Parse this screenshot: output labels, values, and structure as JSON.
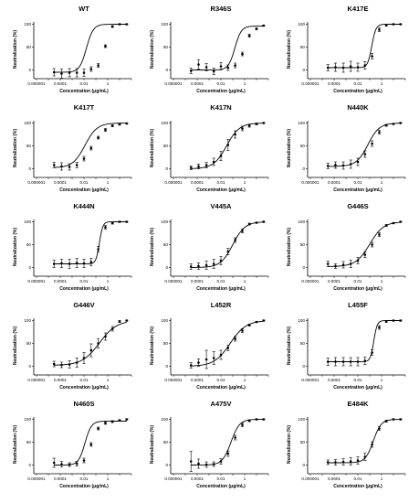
{
  "chart_data": [
    {
      "type": "scatter",
      "title": "WT",
      "xlabel": "Concentration (μg/mL)",
      "ylabel": "Neutralization (%)",
      "xscale": "log",
      "xlim": [
        1e-06,
        100
      ],
      "ylim": [
        -15,
        105
      ],
      "xticks": [
        "0.000001",
        "0.0001",
        "0.01",
        "1"
      ],
      "yticks": [
        "0",
        "50",
        "100"
      ],
      "x": [
        3e-05,
        0.00013,
        0.0006,
        0.0025,
        0.01,
        0.04,
        0.16,
        0.64,
        2.5,
        10,
        40
      ],
      "y": [
        -5,
        -8,
        -6,
        -6,
        -6,
        2,
        10,
        52,
        95,
        100,
        100
      ],
      "err": [
        8,
        10,
        9,
        9,
        8,
        5,
        4,
        3,
        2,
        1,
        1
      ],
      "fit": {
        "bottom": -5,
        "top": 100,
        "ec50": 0.016,
        "hill": 1.5
      }
    },
    {
      "type": "scatter",
      "title": "R346S",
      "xlabel": "Concentration (μg/mL)",
      "ylabel": "Neutralization (%)",
      "xscale": "log",
      "xlim": [
        1e-06,
        100
      ],
      "ylim": [
        -15,
        105
      ],
      "xticks": [
        "0.000001",
        "0.0001",
        "0.01",
        "1"
      ],
      "yticks": [
        "0",
        "50",
        "100"
      ],
      "x": [
        3e-05,
        0.00013,
        0.0006,
        0.0025,
        0.01,
        0.04,
        0.16,
        0.64,
        2.5,
        10,
        40
      ],
      "y": [
        -2,
        12,
        6,
        -3,
        8,
        5,
        10,
        35,
        75,
        90,
        97
      ],
      "err": [
        6,
        10,
        8,
        7,
        8,
        6,
        5,
        4,
        3,
        2,
        1
      ],
      "fit": {
        "bottom": 0,
        "top": 96,
        "ec50": 0.15,
        "hill": 1.6
      }
    },
    {
      "type": "scatter",
      "title": "K417E",
      "xlabel": "Concentration (μg/mL)",
      "ylabel": "Neutralization (%)",
      "xscale": "log",
      "xlim": [
        1e-06,
        100
      ],
      "ylim": [
        -15,
        105
      ],
      "xticks": [
        "0.000001",
        "0.0001",
        "0.01",
        "1"
      ],
      "yticks": [
        "0",
        "50",
        "100"
      ],
      "x": [
        3e-05,
        0.00013,
        0.0006,
        0.0025,
        0.01,
        0.04,
        0.16,
        0.64,
        2.5,
        10,
        40
      ],
      "y": [
        5,
        6,
        5,
        8,
        6,
        10,
        30,
        88,
        98,
        100,
        100
      ],
      "err": [
        7,
        9,
        10,
        11,
        9,
        8,
        6,
        4,
        2,
        1,
        1
      ],
      "fit": {
        "bottom": 5,
        "top": 100,
        "ec50": 0.15,
        "hill": 2.5
      }
    },
    {
      "type": "scatter",
      "title": "K417T",
      "xlabel": "Concentration (μg/mL)",
      "ylabel": "Neutralization (%)",
      "xscale": "log",
      "xlim": [
        1e-06,
        100
      ],
      "ylim": [
        -15,
        105
      ],
      "xticks": [
        "0.000001",
        "0.0001",
        "0.01",
        "1"
      ],
      "yticks": [
        "0",
        "50",
        "100"
      ],
      "x": [
        3e-05,
        0.00013,
        0.0006,
        0.0025,
        0.01,
        0.04,
        0.16,
        0.64,
        2.5,
        10,
        40
      ],
      "y": [
        8,
        5,
        4,
        8,
        22,
        45,
        68,
        85,
        94,
        97,
        99
      ],
      "err": [
        6,
        8,
        7,
        6,
        5,
        4,
        3,
        3,
        2,
        1,
        1
      ],
      "fit": {
        "bottom": 2,
        "top": 100,
        "ec50": 0.012,
        "hill": 0.85
      }
    },
    {
      "type": "scatter",
      "title": "K417N",
      "xlabel": "Concentration (μg/mL)",
      "ylabel": "Neutralization (%)",
      "xscale": "log",
      "xlim": [
        1e-06,
        100
      ],
      "ylim": [
        -15,
        105
      ],
      "xticks": [
        "0.000001",
        "0.0001",
        "0.01",
        "1"
      ],
      "yticks": [
        "0",
        "50",
        "100"
      ],
      "x": [
        3e-05,
        0.00013,
        0.0006,
        0.0025,
        0.01,
        0.04,
        0.16,
        0.64,
        2.5,
        10,
        40
      ],
      "y": [
        2,
        5,
        8,
        15,
        28,
        52,
        75,
        88,
        94,
        98,
        100
      ],
      "err": [
        4,
        5,
        6,
        8,
        10,
        12,
        8,
        5,
        3,
        2,
        1
      ],
      "fit": {
        "bottom": 0,
        "top": 100,
        "ec50": 0.03,
        "hill": 0.8
      }
    },
    {
      "type": "scatter",
      "title": "N440K",
      "xlabel": "Concentration (μg/mL)",
      "ylabel": "Neutralization (%)",
      "xscale": "log",
      "xlim": [
        1e-06,
        100
      ],
      "ylim": [
        -15,
        105
      ],
      "xticks": [
        "0.000001",
        "0.0001",
        "0.01",
        "1"
      ],
      "yticks": [
        "0",
        "50",
        "100"
      ],
      "x": [
        3e-05,
        0.00013,
        0.0006,
        0.0025,
        0.01,
        0.04,
        0.16,
        0.64,
        2.5,
        10,
        40
      ],
      "y": [
        6,
        8,
        7,
        10,
        15,
        32,
        55,
        80,
        95,
        98,
        100
      ],
      "err": [
        6,
        7,
        8,
        9,
        8,
        7,
        6,
        4,
        2,
        1,
        1
      ],
      "fit": {
        "bottom": 5,
        "top": 100,
        "ec50": 0.07,
        "hill": 0.9
      }
    },
    {
      "type": "scatter",
      "title": "K444N",
      "xlabel": "Concentration (μg/mL)",
      "ylabel": "Neutralization (%)",
      "xscale": "log",
      "xlim": [
        1e-06,
        100
      ],
      "ylim": [
        -15,
        105
      ],
      "xticks": [
        "0.000001",
        "0.0001",
        "0.01",
        "1"
      ],
      "yticks": [
        "0",
        "50",
        "100"
      ],
      "x": [
        3e-05,
        0.00013,
        0.0006,
        0.0025,
        0.01,
        0.04,
        0.16,
        0.64,
        2.5,
        10,
        40
      ],
      "y": [
        8,
        9,
        8,
        10,
        9,
        12,
        40,
        88,
        97,
        100,
        100
      ],
      "err": [
        8,
        9,
        10,
        10,
        9,
        8,
        6,
        4,
        2,
        1,
        1
      ],
      "fit": {
        "bottom": 8,
        "top": 100,
        "ec50": 0.2,
        "hill": 3.0
      }
    },
    {
      "type": "scatter",
      "title": "V445A",
      "xlabel": "Concentration (μg/mL)",
      "ylabel": "Neutralization (%)",
      "xscale": "log",
      "xlim": [
        1e-06,
        100
      ],
      "ylim": [
        -15,
        105
      ],
      "xticks": [
        "0.000001",
        "0.0001",
        "0.01",
        "1"
      ],
      "yticks": [
        "0",
        "50",
        "100"
      ],
      "x": [
        3e-05,
        0.00013,
        0.0006,
        0.0025,
        0.01,
        0.04,
        0.16,
        0.64,
        2.5,
        10,
        40
      ],
      "y": [
        2,
        3,
        5,
        8,
        15,
        35,
        60,
        80,
        95,
        98,
        100
      ],
      "err": [
        6,
        7,
        9,
        10,
        9,
        7,
        5,
        4,
        2,
        1,
        1
      ],
      "fit": {
        "bottom": 0,
        "top": 100,
        "ec50": 0.1,
        "hill": 0.85
      }
    },
    {
      "type": "scatter",
      "title": "G446S",
      "xlabel": "Concentration (μg/mL)",
      "ylabel": "Neutralization (%)",
      "xscale": "log",
      "xlim": [
        1e-06,
        100
      ],
      "ylim": [
        -15,
        105
      ],
      "xticks": [
        "0.000001",
        "0.0001",
        "0.01",
        "1"
      ],
      "yticks": [
        "0",
        "50",
        "100"
      ],
      "x": [
        3e-05,
        0.00013,
        0.0006,
        0.0025,
        0.01,
        0.04,
        0.16,
        0.64,
        2.5,
        10,
        40
      ],
      "y": [
        8,
        3,
        6,
        8,
        15,
        28,
        50,
        72,
        92,
        97,
        100
      ],
      "err": [
        6,
        5,
        7,
        8,
        7,
        6,
        5,
        4,
        2,
        1,
        1
      ],
      "fit": {
        "bottom": 2,
        "top": 100,
        "ec50": 0.1,
        "hill": 0.75
      }
    },
    {
      "type": "scatter",
      "title": "G446V",
      "xlabel": "Concentration (μg/mL)",
      "ylabel": "Neutralization (%)",
      "xscale": "log",
      "xlim": [
        1e-06,
        100
      ],
      "ylim": [
        -15,
        105
      ],
      "xticks": [
        "0.000001",
        "0.0001",
        "0.01",
        "1"
      ],
      "yticks": [
        "0",
        "50",
        "100"
      ],
      "x": [
        3e-05,
        0.00013,
        0.0006,
        0.0025,
        0.01,
        0.04,
        0.16,
        0.64,
        2.5,
        10,
        40
      ],
      "y": [
        5,
        3,
        4,
        8,
        18,
        35,
        50,
        65,
        82,
        98,
        100
      ],
      "err": [
        6,
        6,
        8,
        10,
        12,
        14,
        10,
        8,
        5,
        2,
        1
      ],
      "fit": {
        "bottom": 2,
        "top": 100,
        "ec50": 0.2,
        "hill": 0.6
      }
    },
    {
      "type": "scatter",
      "title": "L452R",
      "xlabel": "Concentration (μg/mL)",
      "ylabel": "Neutralization (%)",
      "xscale": "log",
      "xlim": [
        1e-06,
        100
      ],
      "ylim": [
        -15,
        105
      ],
      "xticks": [
        "0.000001",
        "0.0001",
        "0.01",
        "1"
      ],
      "yticks": [
        "0",
        "50",
        "100"
      ],
      "x": [
        3e-05,
        0.00013,
        0.0006,
        0.0025,
        0.01,
        0.04,
        0.16,
        0.64,
        2.5,
        10,
        40
      ],
      "y": [
        2,
        8,
        15,
        18,
        25,
        40,
        60,
        78,
        90,
        97,
        100
      ],
      "err": [
        6,
        8,
        20,
        14,
        10,
        6,
        5,
        4,
        2,
        1,
        1
      ],
      "fit": {
        "bottom": 0,
        "top": 100,
        "ec50": 0.06,
        "hill": 0.65
      }
    },
    {
      "type": "scatter",
      "title": "L455F",
      "xlabel": "Concentration (μg/mL)",
      "ylabel": "Neutralization (%)",
      "xscale": "log",
      "xlim": [
        1e-06,
        100
      ],
      "ylim": [
        -15,
        105
      ],
      "xticks": [
        "0.000001",
        "0.0001",
        "0.01",
        "1"
      ],
      "yticks": [
        "0",
        "50",
        "100"
      ],
      "x": [
        3e-05,
        0.00013,
        0.0006,
        0.0025,
        0.01,
        0.04,
        0.16,
        0.64,
        2.5,
        10,
        40
      ],
      "y": [
        10,
        10,
        10,
        10,
        10,
        12,
        30,
        85,
        98,
        100,
        100
      ],
      "err": [
        8,
        9,
        9,
        9,
        9,
        8,
        6,
        4,
        2,
        1,
        1
      ],
      "fit": {
        "bottom": 10,
        "top": 100,
        "ec50": 0.22,
        "hill": 3.0
      }
    },
    {
      "type": "scatter",
      "title": "N460S",
      "xlabel": "Concentration (μg/mL)",
      "ylabel": "Neutralization (%)",
      "xscale": "log",
      "xlim": [
        1e-06,
        100
      ],
      "ylim": [
        -15,
        105
      ],
      "xticks": [
        "0.000001",
        "0.0001",
        "0.01",
        "1"
      ],
      "yticks": [
        "0",
        "50",
        "100"
      ],
      "x": [
        3e-05,
        0.00013,
        0.0006,
        0.0025,
        0.01,
        0.04,
        0.16,
        0.64,
        2.5,
        10,
        40
      ],
      "y": [
        5,
        2,
        1,
        3,
        10,
        45,
        80,
        92,
        95,
        98,
        100
      ],
      "err": [
        10,
        6,
        4,
        5,
        5,
        4,
        3,
        3,
        2,
        1,
        1
      ],
      "fit": {
        "bottom": 0,
        "top": 96,
        "ec50": 0.012,
        "hill": 1.6
      }
    },
    {
      "type": "scatter",
      "title": "A475V",
      "xlabel": "Concentration (μg/mL)",
      "ylabel": "Neutralization (%)",
      "xscale": "log",
      "xlim": [
        1e-06,
        100
      ],
      "ylim": [
        -15,
        105
      ],
      "xticks": [
        "0.000001",
        "0.0001",
        "0.01",
        "1"
      ],
      "yticks": [
        "0",
        "50",
        "100"
      ],
      "x": [
        3e-05,
        0.00013,
        0.0006,
        0.0025,
        0.01,
        0.04,
        0.16,
        0.64,
        2.5,
        10,
        40
      ],
      "y": [
        8,
        3,
        1,
        2,
        8,
        25,
        60,
        88,
        97,
        100,
        100
      ],
      "err": [
        22,
        10,
        6,
        5,
        6,
        6,
        5,
        4,
        2,
        1,
        1
      ],
      "fit": {
        "bottom": 0,
        "top": 100,
        "ec50": 0.07,
        "hill": 1.2
      }
    },
    {
      "type": "scatter",
      "title": "E484K",
      "xlabel": "Concentration (μg/mL)",
      "ylabel": "Neutralization (%)",
      "xscale": "log",
      "xlim": [
        1e-06,
        100
      ],
      "ylim": [
        -15,
        105
      ],
      "xticks": [
        "0.000001",
        "0.0001",
        "0.01",
        "1"
      ],
      "yticks": [
        "0",
        "50",
        "100"
      ],
      "x": [
        3e-05,
        0.00013,
        0.0006,
        0.0025,
        0.01,
        0.04,
        0.16,
        0.64,
        2.5,
        10,
        40
      ],
      "y": [
        6,
        6,
        7,
        8,
        10,
        18,
        45,
        80,
        96,
        100,
        100
      ],
      "err": [
        5,
        6,
        7,
        8,
        8,
        8,
        6,
        4,
        2,
        1,
        1
      ],
      "fit": {
        "bottom": 5,
        "top": 100,
        "ec50": 0.2,
        "hill": 1.3
      }
    }
  ]
}
